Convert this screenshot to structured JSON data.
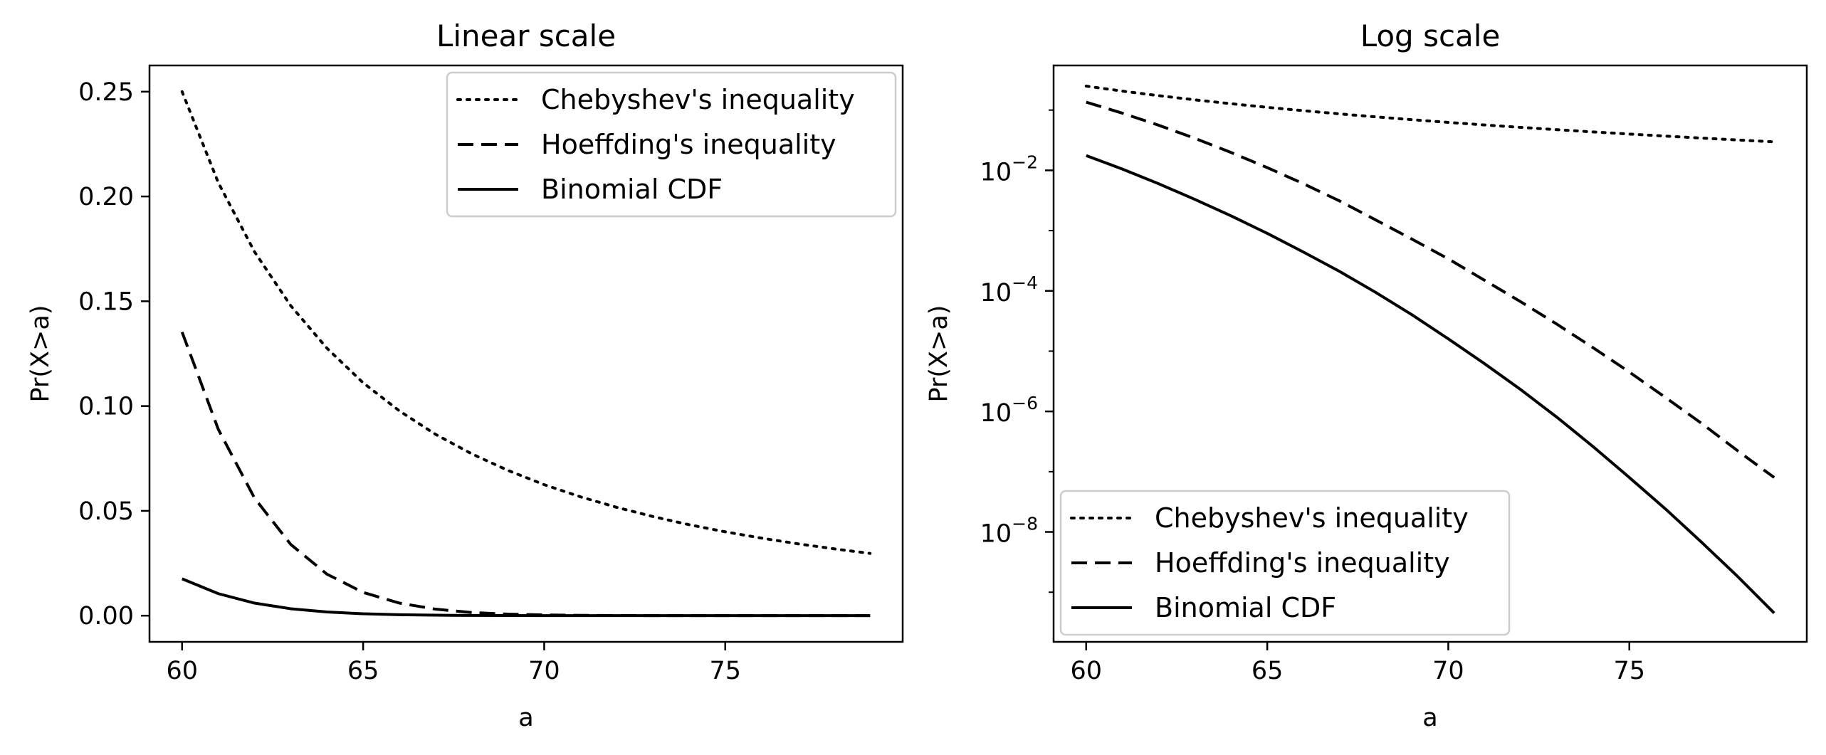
{
  "chart_data": [
    {
      "type": "line",
      "title": "Linear scale",
      "xlabel": "a",
      "ylabel": "Pr(X>a)",
      "xlim": [
        59.1,
        79.9
      ],
      "ylim": [
        -0.0125,
        0.2625
      ],
      "yscale": "linear",
      "grid": false,
      "legend_position": "top-right",
      "x_ticks": [
        60,
        65,
        70,
        75
      ],
      "y_ticks": [
        0.0,
        0.05,
        0.1,
        0.15,
        0.2,
        0.25
      ],
      "x_tick_labels": [
        "60",
        "65",
        "70",
        "75"
      ],
      "y_tick_labels": [
        "0.00",
        "0.05",
        "0.10",
        "0.15",
        "0.20",
        "0.25"
      ],
      "x": [
        60,
        61,
        62,
        63,
        64,
        65,
        66,
        67,
        68,
        69,
        70,
        71,
        72,
        73,
        74,
        75,
        76,
        77,
        78,
        79
      ],
      "series": [
        {
          "name": "Chebyshev's inequality",
          "style": "dotted",
          "values": [
            0.25,
            0.2066,
            0.1736,
            0.1479,
            0.1276,
            0.1111,
            0.0977,
            0.0865,
            0.0772,
            0.0693,
            0.0625,
            0.0567,
            0.0517,
            0.0473,
            0.0434,
            0.04,
            0.037,
            0.0343,
            0.0319,
            0.0297
          ]
        },
        {
          "name": "Hoeffding's inequality",
          "style": "dashed",
          "values": [
            0.1353,
            0.0889,
            0.0561,
            0.034,
            0.0198,
            0.0111,
            0.006,
            0.0031,
            0.0015,
            0.00072,
            0.00034,
            0.00015,
            6.6e-05,
            2.8e-05,
            1.14e-05,
            4.5e-06,
            1.7e-06,
            6.3e-07,
            2.2e-07,
            8e-08
          ]
        },
        {
          "name": "Binomial CDF",
          "style": "solid",
          "values": [
            0.0176,
            0.0105,
            0.006,
            0.0033,
            0.00176,
            0.0009,
            0.00044,
            0.00021,
            9.4e-05,
            4e-05,
            1.6e-05,
            6.2e-06,
            2.3e-06,
            8e-07,
            2.6e-07,
            8e-08,
            2.4e-08,
            6.7e-09,
            1.8e-09,
            4.5e-10
          ]
        }
      ]
    },
    {
      "type": "line",
      "title": "Log scale",
      "xlabel": "a",
      "ylabel": "Pr(X>a)",
      "xlim": [
        59.1,
        79.9
      ],
      "ylim": [
        1.5e-10,
        0.55
      ],
      "yscale": "log",
      "grid": false,
      "legend_position": "bottom-left",
      "x_ticks": [
        60,
        65,
        70,
        75
      ],
      "y_ticks": [
        0.01,
        0.0001,
        1e-06,
        1e-08
      ],
      "x_tick_labels": [
        "60",
        "65",
        "70",
        "75"
      ],
      "y_tick_labels": [
        {
          "base": "10",
          "exponent": "−2"
        },
        {
          "base": "10",
          "exponent": "−4"
        },
        {
          "base": "10",
          "exponent": "−6"
        },
        {
          "base": "10",
          "exponent": "−8"
        }
      ],
      "x": [
        60,
        61,
        62,
        63,
        64,
        65,
        66,
        67,
        68,
        69,
        70,
        71,
        72,
        73,
        74,
        75,
        76,
        77,
        78,
        79
      ],
      "series": [
        {
          "name": "Chebyshev's inequality",
          "style": "dotted",
          "values": [
            0.25,
            0.2066,
            0.1736,
            0.1479,
            0.1276,
            0.1111,
            0.0977,
            0.0865,
            0.0772,
            0.0693,
            0.0625,
            0.0567,
            0.0517,
            0.0473,
            0.0434,
            0.04,
            0.037,
            0.0343,
            0.0319,
            0.0297
          ]
        },
        {
          "name": "Hoeffding's inequality",
          "style": "dashed",
          "values": [
            0.1353,
            0.0889,
            0.0561,
            0.034,
            0.0198,
            0.0111,
            0.006,
            0.0031,
            0.0015,
            0.00072,
            0.00034,
            0.00015,
            6.6e-05,
            2.8e-05,
            1.14e-05,
            4.5e-06,
            1.7e-06,
            6.3e-07,
            2.2e-07,
            8e-08
          ]
        },
        {
          "name": "Binomial CDF",
          "style": "solid",
          "values": [
            0.0176,
            0.0105,
            0.006,
            0.0033,
            0.00176,
            0.0009,
            0.00044,
            0.00021,
            9.4e-05,
            4e-05,
            1.6e-05,
            6.2e-06,
            2.3e-06,
            8e-07,
            2.6e-07,
            8e-08,
            2.4e-08,
            6.7e-09,
            1.8e-09,
            4.5e-10
          ]
        }
      ]
    }
  ]
}
